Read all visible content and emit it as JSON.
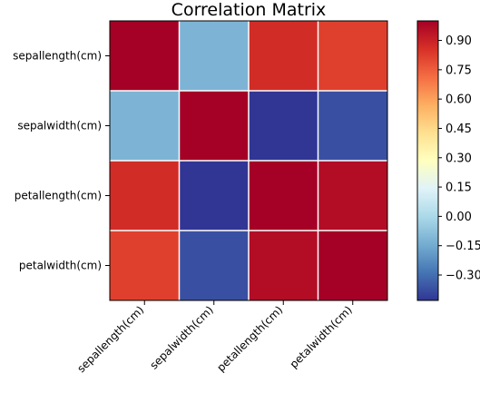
{
  "chart_data": {
    "type": "heatmap",
    "title": "Correlation Matrix",
    "row_labels": [
      "sepallength(cm)",
      "sepalwidth(cm)",
      "petallength(cm)",
      "petalwidth(cm)"
    ],
    "col_labels": [
      "sepallength(cm)",
      "sepalwidth(cm)",
      "petallength(cm)",
      "petalwidth(cm)"
    ],
    "values": [
      [
        1.0,
        -0.12,
        0.87,
        0.82
      ],
      [
        -0.12,
        1.0,
        -0.43,
        -0.37
      ],
      [
        0.87,
        -0.43,
        1.0,
        0.96
      ],
      [
        0.82,
        -0.37,
        0.96,
        1.0
      ]
    ],
    "colorbar": {
      "vmin": -0.43,
      "vmax": 1.0,
      "ticks": [
        0.9,
        0.75,
        0.6,
        0.45,
        0.3,
        0.15,
        0.0,
        -0.15,
        -0.3
      ],
      "tick_labels": [
        "0.90",
        "0.75",
        "0.60",
        "0.45",
        "0.30",
        "0.15",
        "0.00",
        "−0.15",
        "−0.30"
      ],
      "colormap": "RdYlBu_r"
    },
    "grid": true,
    "grid_color": "#ffffff"
  }
}
